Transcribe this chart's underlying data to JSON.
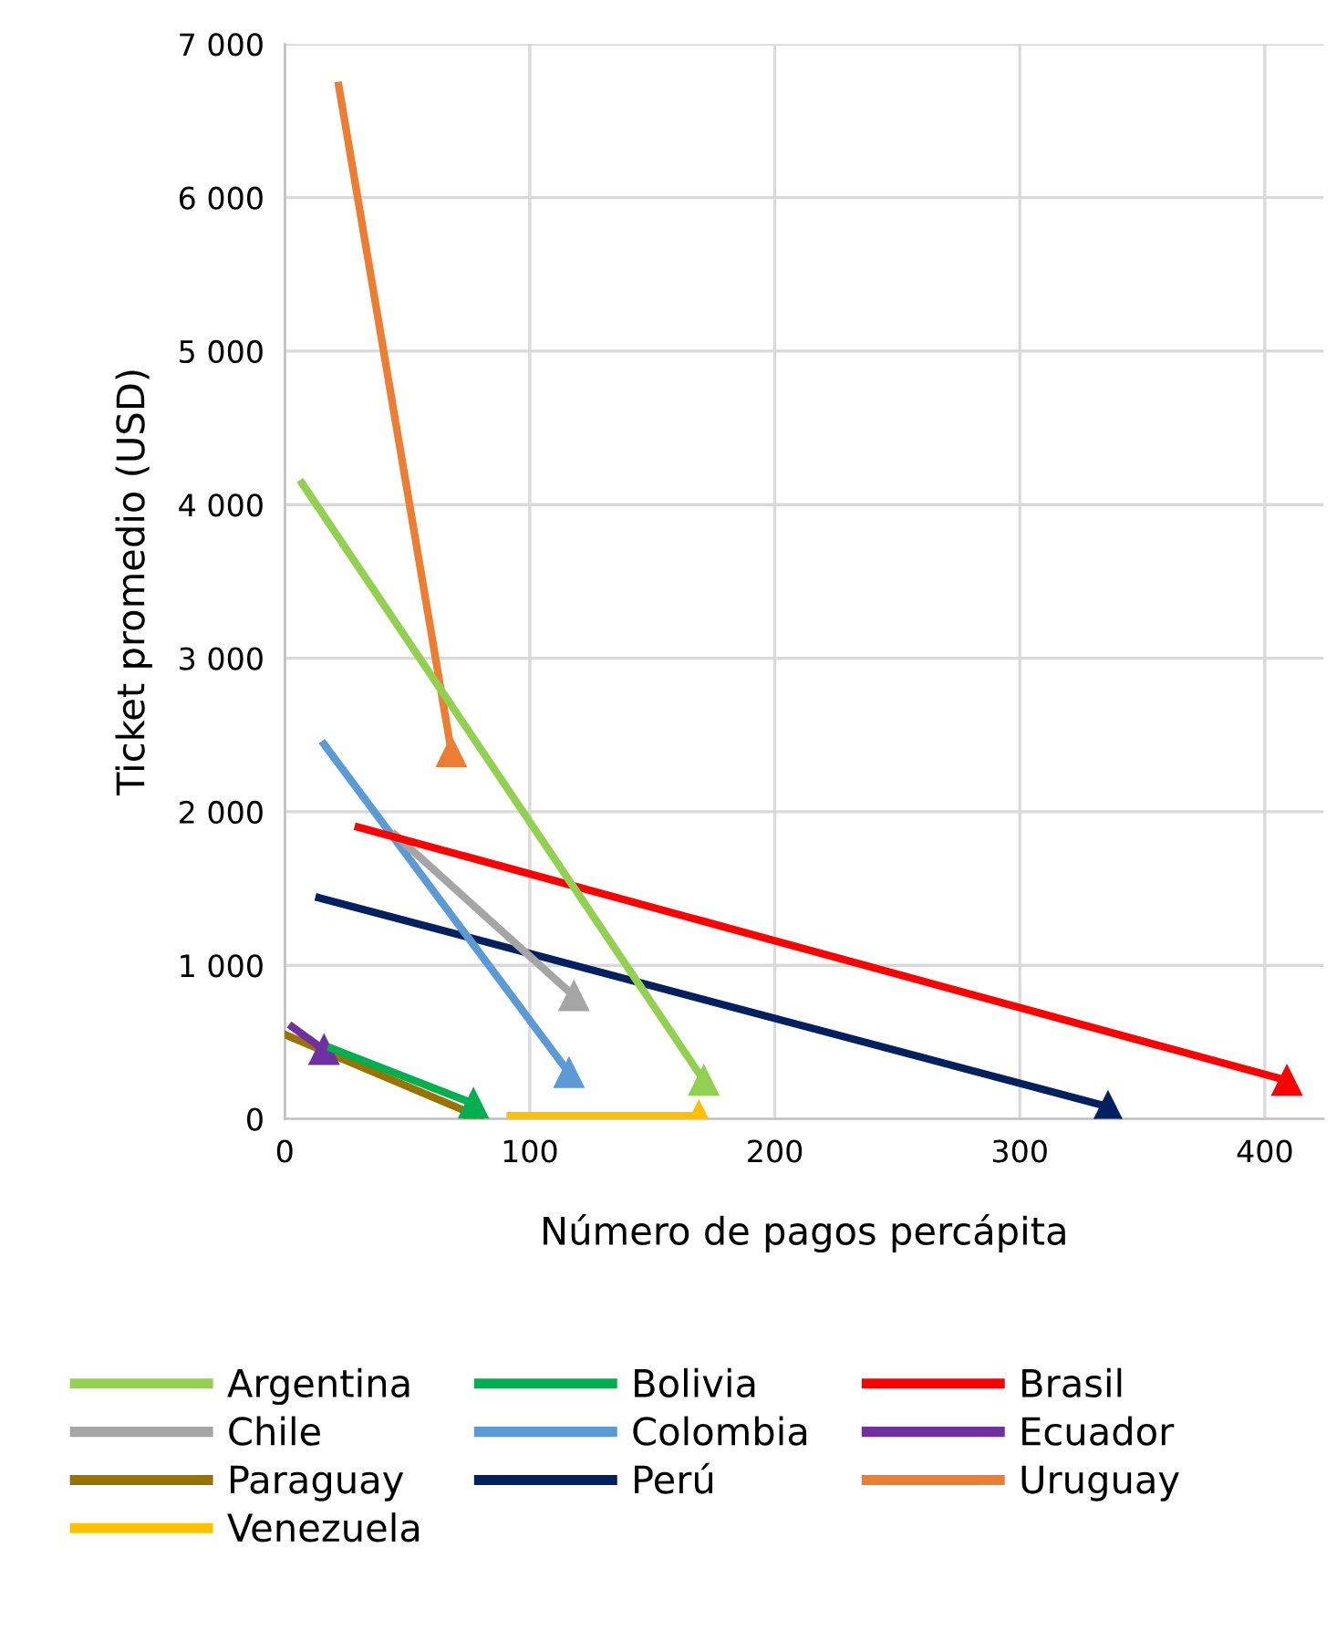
{
  "chart_data": {
    "type": "line",
    "xlabel": "Número de pagos percápita",
    "ylabel": "Ticket promedio (USD)",
    "xlim": [
      0,
      424
    ],
    "ylim": [
      0,
      7000
    ],
    "xticks": [
      0,
      100,
      200,
      300,
      400
    ],
    "yticks": [
      0,
      {
        "value": 1000,
        "label": "1 000"
      },
      {
        "value": 2000,
        "label": "2 000"
      },
      {
        "value": 3000,
        "label": "3 000"
      },
      {
        "value": 4000,
        "label": "4 000"
      },
      {
        "value": 5000,
        "label": "5 000"
      },
      {
        "value": 6000,
        "label": "6 000"
      },
      {
        "value": 7000,
        "label": "7 000"
      }
    ],
    "grid": true,
    "legend": "bottom",
    "marker": "triangle",
    "line_style": "solid",
    "series": [
      {
        "name": "Argentina",
        "color": "#92d050",
        "x": [
          7,
          171
        ],
        "values": [
          4140,
          250
        ]
      },
      {
        "name": "Bolivia",
        "color": "#00b050",
        "x": [
          19,
          77
        ],
        "values": [
          460,
          100
        ]
      },
      {
        "name": "Brasil",
        "color": "#ff0000",
        "x": [
          30,
          409
        ],
        "values": [
          1900,
          250
        ]
      },
      {
        "name": "Chile",
        "color": "#a5a5a5",
        "x": [
          45,
          118
        ],
        "values": [
          1850,
          800
        ]
      },
      {
        "name": "Colombia",
        "color": "#5b9bd5",
        "x": [
          16,
          116
        ],
        "values": [
          2440,
          300
        ]
      },
      {
        "name": "Ecuador",
        "color": "#7030a0",
        "x": [
          3,
          16
        ],
        "values": [
          600,
          450
        ]
      },
      {
        "name": "Paraguay",
        "color": "#997300",
        "x": [
          0,
          77
        ],
        "values": [
          550,
          30
        ]
      },
      {
        "name": "Perú",
        "color": "#002060",
        "x": [
          14,
          336
        ],
        "values": [
          1440,
          80
        ]
      },
      {
        "name": "Uruguay",
        "color": "#ed7d31",
        "x": [
          22,
          68
        ],
        "values": [
          6730,
          2390
        ]
      },
      {
        "name": "Venezuela",
        "color": "#ffc000",
        "x": [
          92,
          169
        ],
        "values": [
          20,
          20
        ]
      }
    ]
  }
}
